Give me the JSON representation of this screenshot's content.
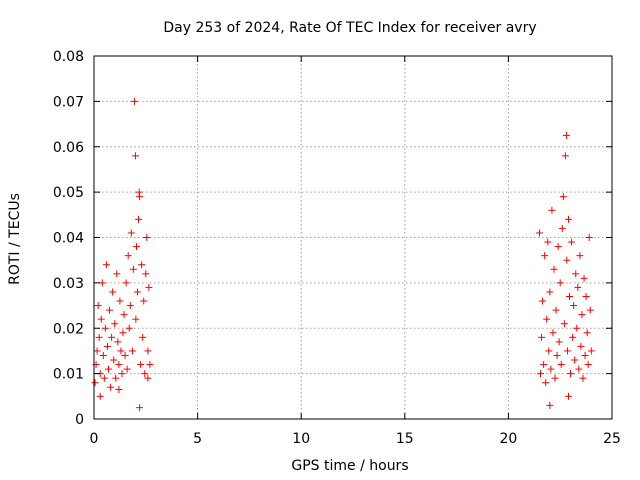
{
  "chart_data": {
    "type": "scatter",
    "title": "Day 253 of 2024, Rate Of TEC Index for receiver avry",
    "xlabel": "GPS time / hours",
    "ylabel": "ROTI / TECUs",
    "xlim": [
      0,
      25
    ],
    "ylim": [
      0,
      0.08
    ],
    "xticks": [
      0,
      5,
      10,
      15,
      20,
      25
    ],
    "xtick_labels": [
      "0",
      "5",
      "10",
      "15",
      "20",
      "25"
    ],
    "yticks": [
      0,
      0.01,
      0.02,
      0.03,
      0.04,
      0.05,
      0.06,
      0.07,
      0.08
    ],
    "ytick_labels": [
      "0",
      "0.01",
      "0.02",
      "0.03",
      "0.04",
      "0.05",
      "0.06",
      "0.07",
      "0.08"
    ],
    "grid": true,
    "marker": "+",
    "color": "#ff0000",
    "series": [
      {
        "name": "ROTI",
        "points": [
          [
            0.05,
            0.008
          ],
          [
            0.1,
            0.012
          ],
          [
            0.15,
            0.015
          ],
          [
            0.2,
            0.025
          ],
          [
            0.25,
            0.018
          ],
          [
            0.3,
            0.01
          ],
          [
            0.35,
            0.022
          ],
          [
            0.4,
            0.03
          ],
          [
            0.45,
            0.014
          ],
          [
            0.5,
            0.009
          ],
          [
            0.55,
            0.02
          ],
          [
            0.6,
            0.034
          ],
          [
            0.65,
            0.016
          ],
          [
            0.7,
            0.011
          ],
          [
            0.75,
            0.024
          ],
          [
            0.8,
            0.007
          ],
          [
            0.85,
            0.018
          ],
          [
            0.9,
            0.028
          ],
          [
            0.95,
            0.013
          ],
          [
            1.0,
            0.021
          ],
          [
            1.05,
            0.009
          ],
          [
            1.1,
            0.032
          ],
          [
            1.15,
            0.017
          ],
          [
            1.2,
            0.012
          ],
          [
            1.25,
            0.026
          ],
          [
            1.3,
            0.015
          ],
          [
            1.35,
            0.01
          ],
          [
            1.4,
            0.019
          ],
          [
            1.45,
            0.023
          ],
          [
            1.5,
            0.014
          ],
          [
            1.55,
            0.03
          ],
          [
            1.6,
            0.011
          ],
          [
            1.65,
            0.036
          ],
          [
            1.7,
            0.02
          ],
          [
            1.75,
            0.025
          ],
          [
            1.8,
            0.041
          ],
          [
            1.85,
            0.015
          ],
          [
            1.9,
            0.033
          ],
          [
            1.95,
            0.07
          ],
          [
            2.0,
            0.058
          ],
          [
            2.02,
            0.022
          ],
          [
            2.05,
            0.038
          ],
          [
            2.1,
            0.028
          ],
          [
            2.15,
            0.044
          ],
          [
            2.18,
            0.05
          ],
          [
            2.2,
            0.049
          ],
          [
            2.25,
            0.012
          ],
          [
            2.3,
            0.034
          ],
          [
            2.35,
            0.018
          ],
          [
            2.4,
            0.026
          ],
          [
            2.45,
            0.01
          ],
          [
            2.5,
            0.032
          ],
          [
            2.55,
            0.04
          ],
          [
            2.6,
            0.015
          ],
          [
            2.65,
            0.029
          ],
          [
            2.7,
            0.012
          ],
          [
            2.2,
            0.0025
          ],
          [
            0.3,
            0.005
          ],
          [
            1.2,
            0.0065
          ],
          [
            2.6,
            0.009
          ],
          [
            21.5,
            0.041
          ],
          [
            21.55,
            0.01
          ],
          [
            21.6,
            0.018
          ],
          [
            21.65,
            0.026
          ],
          [
            21.7,
            0.012
          ],
          [
            21.75,
            0.036
          ],
          [
            21.8,
            0.008
          ],
          [
            21.85,
            0.022
          ],
          [
            21.9,
            0.039
          ],
          [
            21.95,
            0.015
          ],
          [
            22.0,
            0.028
          ],
          [
            22.05,
            0.011
          ],
          [
            22.1,
            0.046
          ],
          [
            22.15,
            0.019
          ],
          [
            22.2,
            0.033
          ],
          [
            22.25,
            0.009
          ],
          [
            22.3,
            0.024
          ],
          [
            22.35,
            0.014
          ],
          [
            22.4,
            0.038
          ],
          [
            22.45,
            0.017
          ],
          [
            22.5,
            0.03
          ],
          [
            22.55,
            0.012
          ],
          [
            22.6,
            0.042
          ],
          [
            22.65,
            0.049
          ],
          [
            22.7,
            0.021
          ],
          [
            22.75,
            0.058
          ],
          [
            22.8,
            0.0625
          ],
          [
            22.82,
            0.035
          ],
          [
            22.85,
            0.015
          ],
          [
            22.9,
            0.044
          ],
          [
            22.95,
            0.027
          ],
          [
            23.0,
            0.01
          ],
          [
            23.05,
            0.039
          ],
          [
            23.1,
            0.018
          ],
          [
            23.15,
            0.025
          ],
          [
            23.2,
            0.013
          ],
          [
            23.25,
            0.032
          ],
          [
            23.3,
            0.02
          ],
          [
            23.35,
            0.029
          ],
          [
            23.4,
            0.011
          ],
          [
            23.45,
            0.036
          ],
          [
            23.5,
            0.016
          ],
          [
            23.55,
            0.023
          ],
          [
            23.6,
            0.009
          ],
          [
            23.65,
            0.031
          ],
          [
            23.7,
            0.014
          ],
          [
            23.75,
            0.027
          ],
          [
            23.8,
            0.019
          ],
          [
            23.85,
            0.012
          ],
          [
            23.9,
            0.04
          ],
          [
            23.95,
            0.024
          ],
          [
            24.0,
            0.015
          ],
          [
            22.0,
            0.003
          ],
          [
            22.9,
            0.005
          ]
        ]
      }
    ]
  }
}
